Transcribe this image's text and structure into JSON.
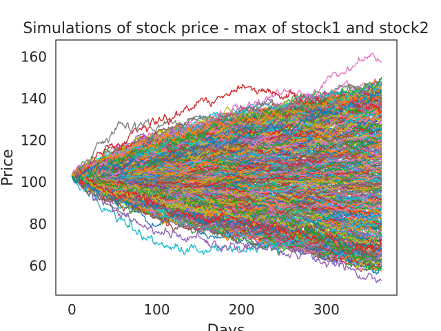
{
  "chart_data": {
    "type": "line",
    "title": "Simulations of stock price - max of stock1 and stock2",
    "xlabel": "Days",
    "ylabel": "Price",
    "xlim": [
      -19,
      383
    ],
    "ylim": [
      46,
      168
    ],
    "xticks": [
      0,
      100,
      200,
      300
    ],
    "yticks": [
      60,
      80,
      100,
      120,
      140,
      160
    ],
    "grid": false,
    "legend": "none",
    "n_days": 366,
    "start_price": 103,
    "colors": [
      "#1f77b4",
      "#ff7f0e",
      "#2ca02c",
      "#d62728",
      "#9467bd",
      "#8c564b",
      "#e377c2",
      "#7f7f7f",
      "#bcbd22",
      "#17becf"
    ],
    "series": [
      {
        "color": "#e377c2",
        "values": [
          [
            0,
            103
          ],
          [
            60,
            115
          ],
          [
            120,
            124
          ],
          [
            180,
            133
          ],
          [
            240,
            140
          ],
          [
            280,
            143
          ],
          [
            310,
            150
          ],
          [
            340,
            157
          ],
          [
            355,
            162
          ],
          [
            365,
            158
          ]
        ]
      },
      {
        "color": "#2ca02c",
        "values": [
          [
            0,
            103
          ],
          [
            60,
            112
          ],
          [
            120,
            120
          ],
          [
            180,
            128
          ],
          [
            240,
            134
          ],
          [
            280,
            138
          ],
          [
            320,
            143
          ],
          [
            350,
            148
          ],
          [
            365,
            148
          ]
        ]
      },
      {
        "color": "#d62728",
        "values": [
          [
            0,
            103
          ],
          [
            50,
            118
          ],
          [
            100,
            128
          ],
          [
            150,
            138
          ],
          [
            190,
            143
          ],
          [
            210,
            146
          ],
          [
            240,
            141
          ],
          [
            270,
            139
          ],
          [
            300,
            138
          ],
          [
            330,
            136
          ],
          [
            365,
            137
          ]
        ]
      },
      {
        "color": "#ff7f0e",
        "values": [
          [
            0,
            103
          ],
          [
            60,
            114
          ],
          [
            120,
            122
          ],
          [
            180,
            128
          ],
          [
            240,
            132
          ],
          [
            300,
            137
          ],
          [
            340,
            140
          ],
          [
            365,
            141
          ]
        ]
      },
      {
        "color": "#7f7f7f",
        "values": [
          [
            0,
            103
          ],
          [
            30,
            116
          ],
          [
            60,
            128
          ],
          [
            90,
            126
          ],
          [
            140,
            130
          ],
          [
            200,
            134
          ],
          [
            260,
            136
          ],
          [
            320,
            138
          ],
          [
            365,
            139
          ]
        ]
      },
      {
        "color": "#17becf",
        "values": [
          [
            0,
            103
          ],
          [
            20,
            95
          ],
          [
            40,
            88
          ],
          [
            60,
            80
          ],
          [
            80,
            74
          ],
          [
            100,
            70
          ],
          [
            130,
            66
          ],
          [
            170,
            68
          ],
          [
            220,
            69
          ],
          [
            270,
            72
          ],
          [
            320,
            76
          ],
          [
            365,
            79
          ]
        ]
      },
      {
        "color": "#9467bd",
        "values": [
          [
            0,
            103
          ],
          [
            30,
            93
          ],
          [
            70,
            82
          ],
          [
            100,
            76
          ],
          [
            150,
            72
          ],
          [
            200,
            70
          ],
          [
            240,
            68
          ],
          [
            280,
            65
          ],
          [
            320,
            59
          ],
          [
            340,
            54
          ],
          [
            355,
            55
          ],
          [
            365,
            54
          ]
        ]
      },
      {
        "color": "#8c564b",
        "values": [
          [
            0,
            103
          ],
          [
            40,
            92
          ],
          [
            90,
            86
          ],
          [
            140,
            82
          ],
          [
            200,
            80
          ],
          [
            250,
            77
          ],
          [
            300,
            74
          ],
          [
            340,
            70
          ],
          [
            365,
            69
          ]
        ]
      },
      {
        "color": "#1f77b4",
        "values": [
          [
            0,
            103
          ],
          [
            40,
            93
          ],
          [
            90,
            88
          ],
          [
            140,
            84
          ],
          [
            200,
            80
          ],
          [
            260,
            76
          ],
          [
            310,
            72
          ],
          [
            340,
            68
          ],
          [
            365,
            66
          ]
        ]
      },
      {
        "color": "#bcbd22",
        "values": [
          [
            0,
            103
          ],
          [
            50,
            96
          ],
          [
            100,
            92
          ],
          [
            150,
            88
          ],
          [
            200,
            84
          ],
          [
            250,
            80
          ],
          [
            300,
            76
          ],
          [
            340,
            72
          ],
          [
            365,
            73
          ]
        ]
      },
      {
        "color": "#d62728",
        "values": [
          [
            0,
            103
          ],
          [
            50,
            95
          ],
          [
            100,
            89
          ],
          [
            160,
            83
          ],
          [
            220,
            80
          ],
          [
            260,
            76
          ],
          [
            300,
            72
          ],
          [
            330,
            68
          ],
          [
            365,
            70
          ]
        ]
      },
      {
        "color": "#2ca02c",
        "values": [
          [
            0,
            103
          ],
          [
            80,
            96
          ],
          [
            150,
            92
          ],
          [
            210,
            86
          ],
          [
            260,
            80
          ],
          [
            300,
            72
          ],
          [
            330,
            66
          ],
          [
            350,
            61
          ],
          [
            365,
            60
          ]
        ]
      },
      {
        "color": "#1f77b4",
        "values": [
          [
            0,
            103
          ],
          [
            80,
            110
          ],
          [
            160,
            117
          ],
          [
            240,
            125
          ],
          [
            300,
            132
          ],
          [
            340,
            138
          ],
          [
            365,
            144
          ]
        ]
      }
    ]
  }
}
